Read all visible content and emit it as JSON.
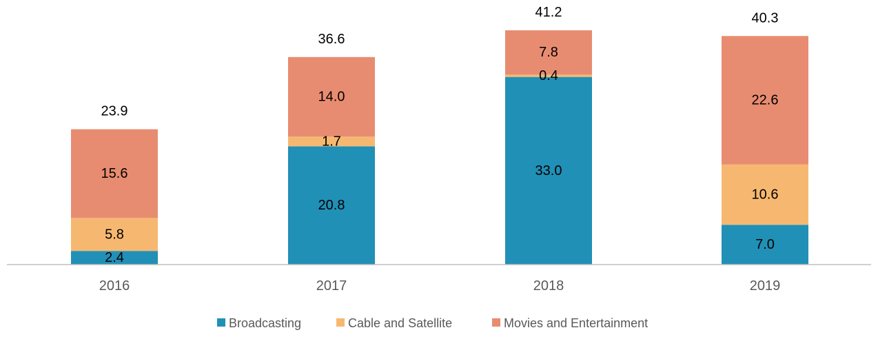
{
  "chart_data": {
    "type": "bar",
    "stacked": true,
    "categories": [
      "2016",
      "2017",
      "2018",
      "2019"
    ],
    "series": [
      {
        "name": "Broadcasting",
        "values": [
          2.4,
          20.8,
          33.0,
          7.0
        ],
        "labels": [
          "2.4",
          "20.8",
          "33.0",
          "7.0"
        ],
        "color": "#2190B6"
      },
      {
        "name": "Cable and Satellite",
        "values": [
          5.8,
          1.7,
          0.4,
          10.6
        ],
        "labels": [
          "5.8",
          "1.7",
          "0.4",
          "10.6"
        ],
        "color": "#F6B870"
      },
      {
        "name": "Movies and Entertainment",
        "values": [
          15.6,
          14.0,
          7.8,
          22.6
        ],
        "labels": [
          "15.6",
          "14.0",
          "7.8",
          "22.6"
        ],
        "color": "#E88C71"
      }
    ],
    "totals": [
      "23.9",
      "36.6",
      "41.2",
      "40.3"
    ],
    "ylim": [
      0,
      41.2
    ],
    "grid": false,
    "legend": "bottom",
    "axis_color": "#BFBFBF"
  }
}
